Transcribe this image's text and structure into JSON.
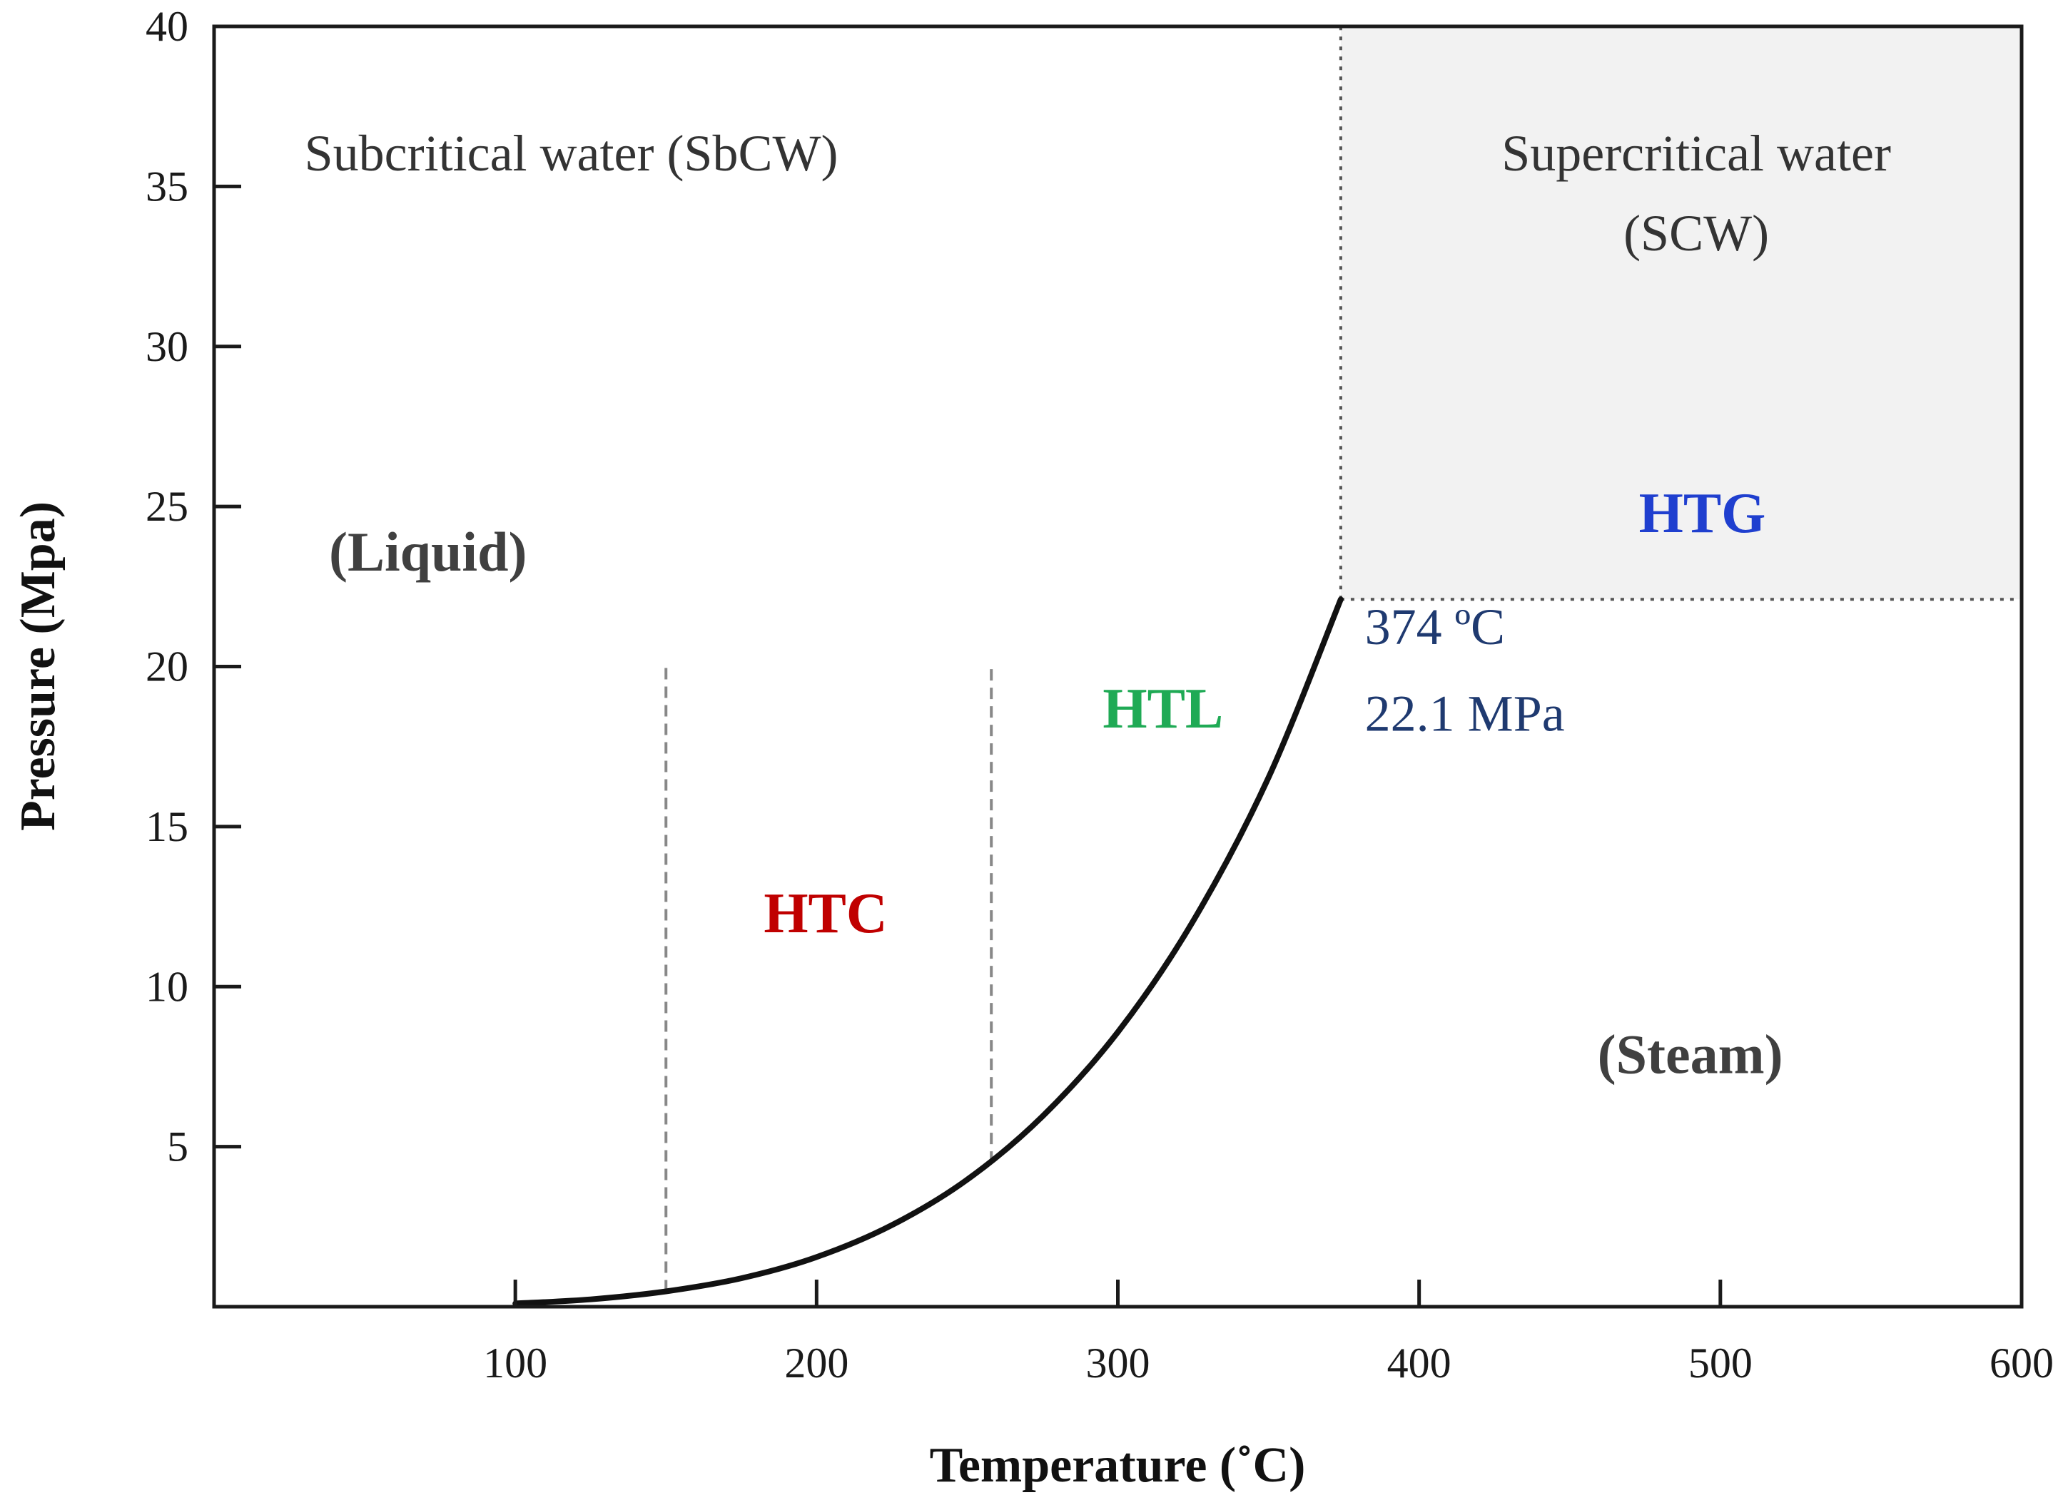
{
  "chart_data": {
    "type": "line",
    "title": "",
    "xlabel": "Temperature (˚C)",
    "ylabel": "Pressure (Mpa)",
    "xlim": [
      0,
      600
    ],
    "ylim": [
      0,
      40
    ],
    "x_ticks": [
      100,
      200,
      300,
      400,
      500,
      600
    ],
    "y_ticks": [
      5,
      10,
      15,
      20,
      25,
      30,
      35,
      40
    ],
    "grid": false,
    "series": [
      {
        "name": "Vapor pressure curve",
        "color": "#111111",
        "x": [
          100,
          125,
          150,
          175,
          200,
          225,
          250,
          275,
          300,
          325,
          350,
          374
        ],
        "y": [
          0.1,
          0.23,
          0.48,
          0.89,
          1.55,
          2.55,
          3.97,
          5.95,
          8.58,
          12.05,
          16.53,
          22.1
        ]
      }
    ],
    "boundaries": [
      {
        "name": "HTC lower limit",
        "type": "vertical-dashed",
        "x": 150,
        "y_range": [
          0.48,
          20
        ],
        "color": "#888888"
      },
      {
        "name": "HTC/HTL limit",
        "type": "vertical-dashed",
        "x": 258,
        "y_range": [
          4.5,
          20
        ],
        "color": "#888888"
      },
      {
        "name": "Critical temperature",
        "type": "vertical-dotted",
        "x": 374,
        "y_range": [
          22.1,
          40
        ],
        "color": "#555555"
      },
      {
        "name": "Critical pressure",
        "type": "horizontal-dotted",
        "y": 22.1,
        "x_range": [
          374,
          600
        ],
        "color": "#555555"
      }
    ],
    "shaded_regions": [
      {
        "name": "Supercritical region",
        "x_range": [
          374,
          600
        ],
        "y_range": [
          22.1,
          40
        ],
        "color": "#f2f2f2"
      }
    ],
    "critical_point": {
      "temperature": 374,
      "pressure": 22.1
    },
    "annotations": {
      "subcritical": {
        "text": "Subcritical water (SbCW)",
        "x": 30,
        "y": 35.5
      },
      "supercritical_line1": {
        "text": "Supercritical water",
        "x": 492,
        "y": 35.5
      },
      "supercritical_line2": {
        "text": "(SCW)",
        "x": 492,
        "y": 33
      },
      "liquid": {
        "text": "(Liquid)",
        "x": 71,
        "y": 23
      },
      "steam": {
        "text": "(Steam)",
        "x": 490,
        "y": 7.3
      },
      "htg": {
        "text": "HTG",
        "x": 494,
        "y": 24.2,
        "color": "#1f3fcf"
      },
      "htl": {
        "text": "HTL",
        "x": 315,
        "y": 18.1,
        "color": "#1faa55"
      },
      "htc": {
        "text": "HTC",
        "x": 203,
        "y": 11.7,
        "color": "#c00000"
      },
      "crit_temp": {
        "text": "374 ºC",
        "x": 382,
        "y": 20.7,
        "color": "#1f3a70"
      },
      "crit_pressure": {
        "text": "22.1 MPa",
        "x": 382,
        "y": 18.0,
        "color": "#1f3a70"
      }
    }
  }
}
